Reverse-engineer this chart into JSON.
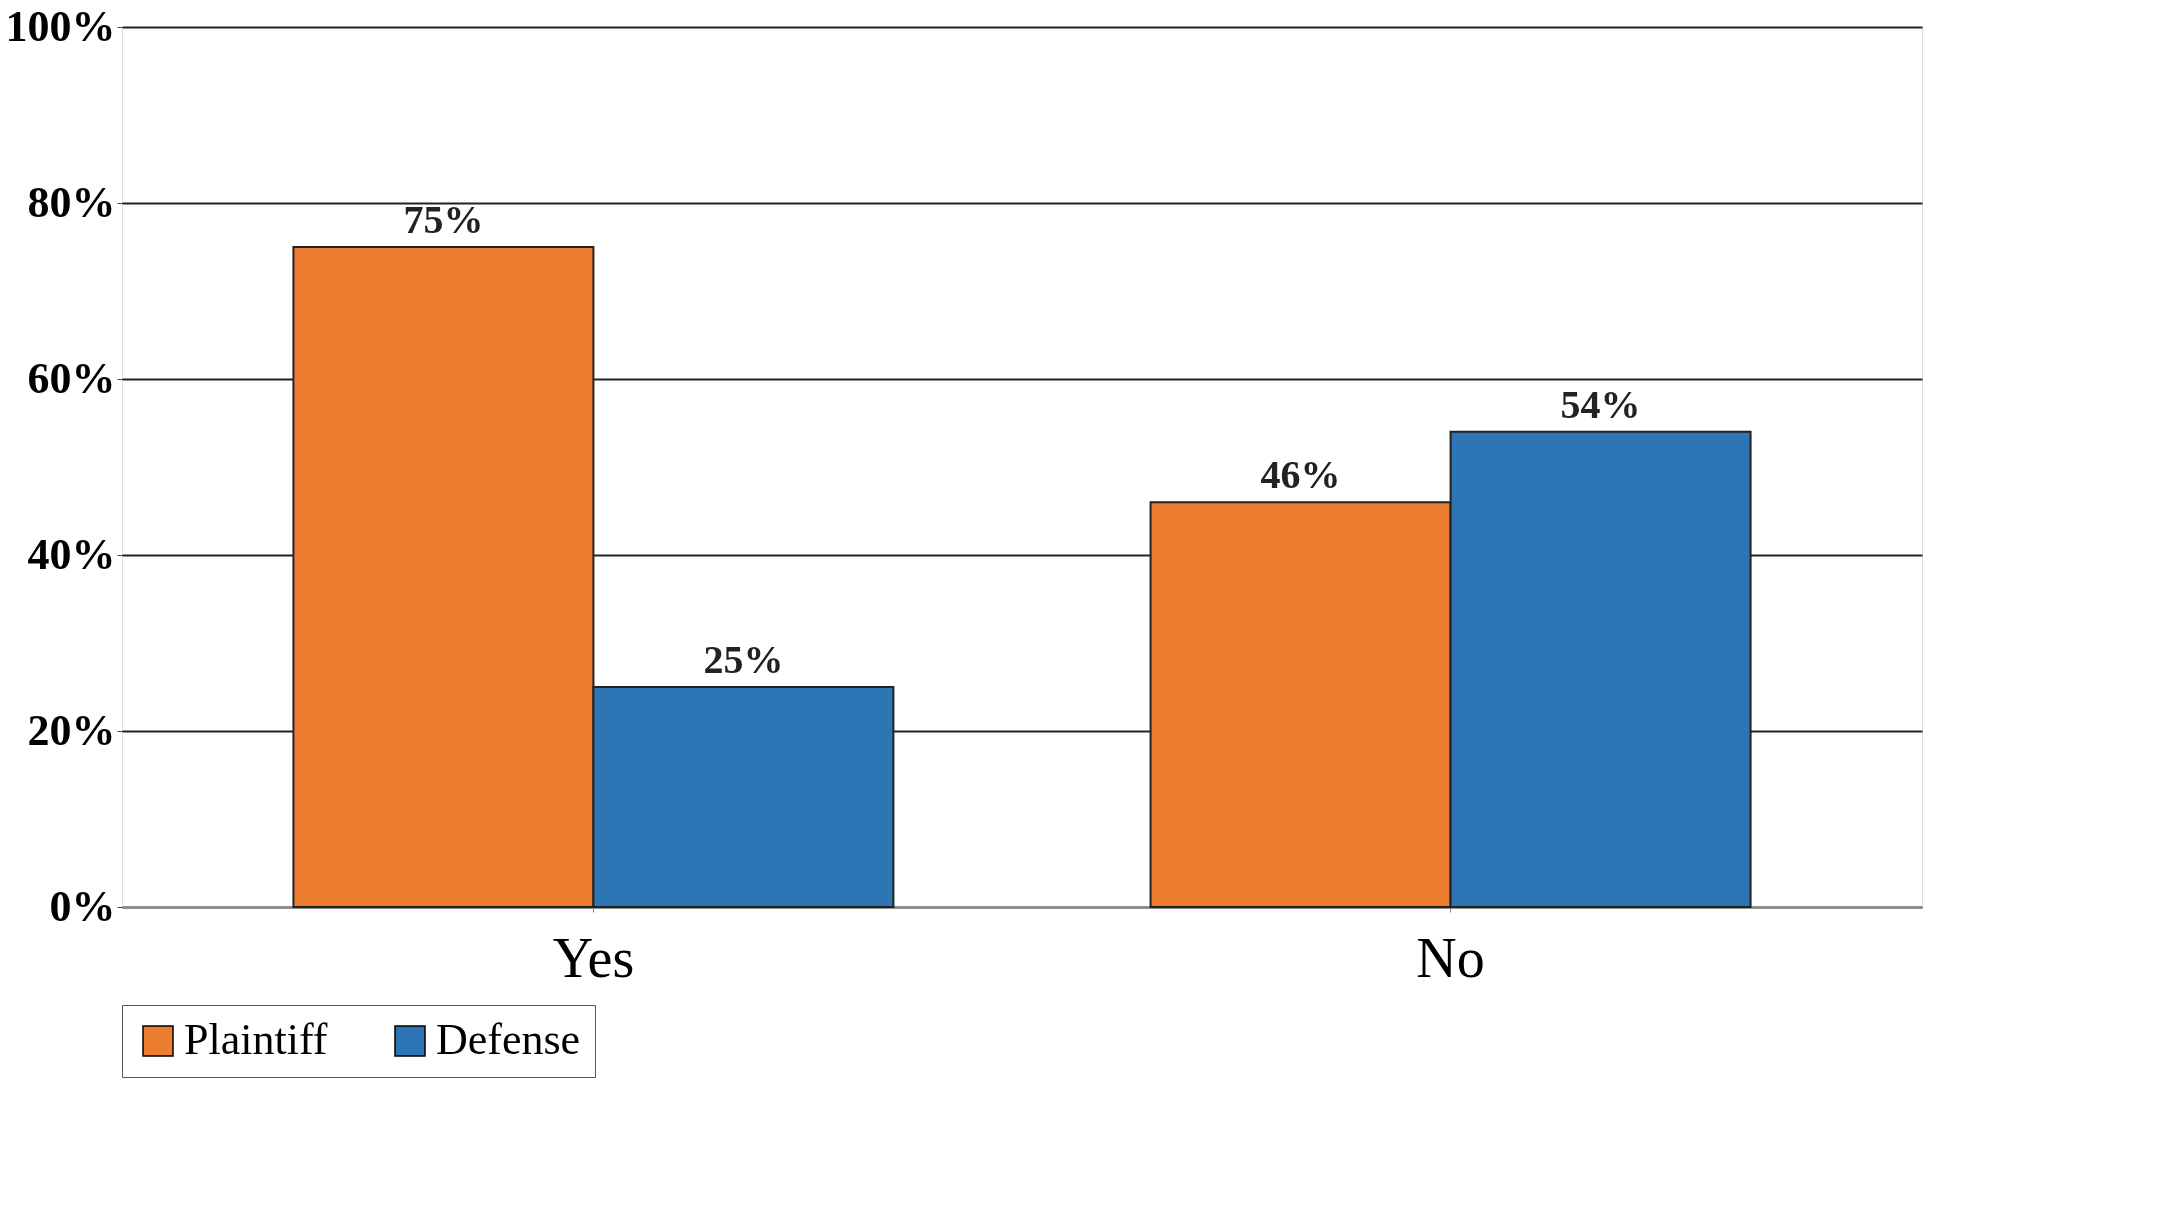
{
  "chart_data": {
    "type": "bar",
    "categories": [
      "Yes",
      "No"
    ],
    "series": [
      {
        "name": "Plaintiff",
        "color": "#ed7d31",
        "values": [
          75,
          46
        ],
        "value_labels": [
          "75%",
          "46%"
        ]
      },
      {
        "name": "Defense",
        "color": "#2e75b6",
        "values": [
          25,
          54
        ],
        "value_labels": [
          "25%",
          "54%"
        ]
      }
    ],
    "ylim": [
      0,
      100
    ],
    "yticks": [
      {
        "value": 0,
        "label": "0%"
      },
      {
        "value": 20,
        "label": "20%"
      },
      {
        "value": 40,
        "label": "40%"
      },
      {
        "value": 60,
        "label": "60%"
      },
      {
        "value": 80,
        "label": "80%"
      },
      {
        "value": 100,
        "label": "100%"
      }
    ],
    "grid": "y",
    "legend": "bottom"
  }
}
